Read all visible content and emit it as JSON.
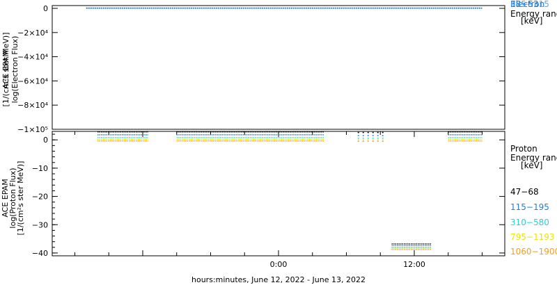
{
  "figure": {
    "xlabel": "hours:minutes, June 12, 2022 - June 13, 2022",
    "x_ticks": [
      "0:00",
      "12:00"
    ]
  },
  "electron_panel": {
    "ylabel_lines": [
      "ACE EPAM",
      "log(Electron Flux)",
      "[1/(cm²s ster MeV)]"
    ],
    "y_ticks": [
      "0",
      "−2×10⁴",
      "−4×10⁴",
      "−6×10⁴",
      "−8×10⁴",
      "−1×10⁵"
    ],
    "legend_title": "Electron",
    "legend_energy": "Energy range",
    "legend_unit": "[keV]",
    "channels": [
      {
        "label": "38−53",
        "color": "#1f7fd9"
      },
      {
        "label": "175−315",
        "color": "#1f7fd9"
      }
    ]
  },
  "proton_panel": {
    "ylabel_lines": [
      "ACE EPAM",
      "log(Proton Flux)",
      "[1/(cm²s ster MeV)]"
    ],
    "y_ticks": [
      "0",
      "−10",
      "−20",
      "−30",
      "−40"
    ],
    "legend_title": "Proton",
    "legend_energy": "Energy range",
    "legend_unit": "[keV]",
    "channels": [
      {
        "label": "47−68",
        "color": "#000000"
      },
      {
        "label": "115−195",
        "color": "#1f7fd9"
      },
      {
        "label": "310−580",
        "color": "#22d3d3"
      },
      {
        "label": "795−1193",
        "color": "#e8e800"
      },
      {
        "label": "1060−1900",
        "color": "#f0a020"
      }
    ]
  },
  "chart_data": [
    {
      "type": "scatter",
      "title": "",
      "ylabel": "log(Electron Flux) [1/(cm²s ster MeV)]",
      "xlabel": "hours:minutes, June 12, 2022 - June 13, 2022",
      "ylim": [
        -100000,
        0
      ],
      "y_ticks": [
        0,
        -20000,
        -40000,
        -60000,
        -80000,
        -100000
      ],
      "x_ticks": [
        "0:00",
        "12:00"
      ],
      "series": [
        {
          "name": "38−53",
          "x_hours": [
            -17,
            18
          ],
          "values": [
            1.5,
            1.5
          ]
        },
        {
          "name": "175−315",
          "x_hours": [
            -17,
            18
          ],
          "values": [
            0.5,
            0.5
          ]
        }
      ]
    },
    {
      "type": "scatter",
      "title": "",
      "ylabel": "log(Proton Flux) [1/(cm²s ster MeV)]",
      "xlabel": "hours:minutes, June 12, 2022 - June 13, 2022",
      "ylim": [
        -41,
        3
      ],
      "y_ticks": [
        0,
        -10,
        -20,
        -30,
        -40
      ],
      "x_ticks": [
        "0:00",
        "12:00"
      ],
      "segments_hours": [
        [
          -16,
          -11.5
        ],
        [
          -9,
          4
        ],
        [
          7,
          9.5
        ],
        [
          10,
          13.5
        ],
        [
          15,
          18
        ]
      ],
      "series": [
        {
          "name": "47−68",
          "values": [
            2.8,
            2.8,
            2.6,
            -36.8,
            2.8
          ]
        },
        {
          "name": "115−195",
          "values": [
            1.8,
            1.8,
            1.5,
            -37.4,
            1.8
          ]
        },
        {
          "name": "310−580",
          "values": [
            0.8,
            0.8,
            0.6,
            -38.0,
            0.8
          ]
        },
        {
          "name": "795−1193",
          "values": [
            0.2,
            0.2,
            0.0,
            -38.4,
            0.2
          ]
        },
        {
          "name": "1060−1900",
          "values": [
            -0.4,
            -0.4,
            -0.5,
            -38.8,
            -0.4
          ]
        }
      ]
    }
  ]
}
